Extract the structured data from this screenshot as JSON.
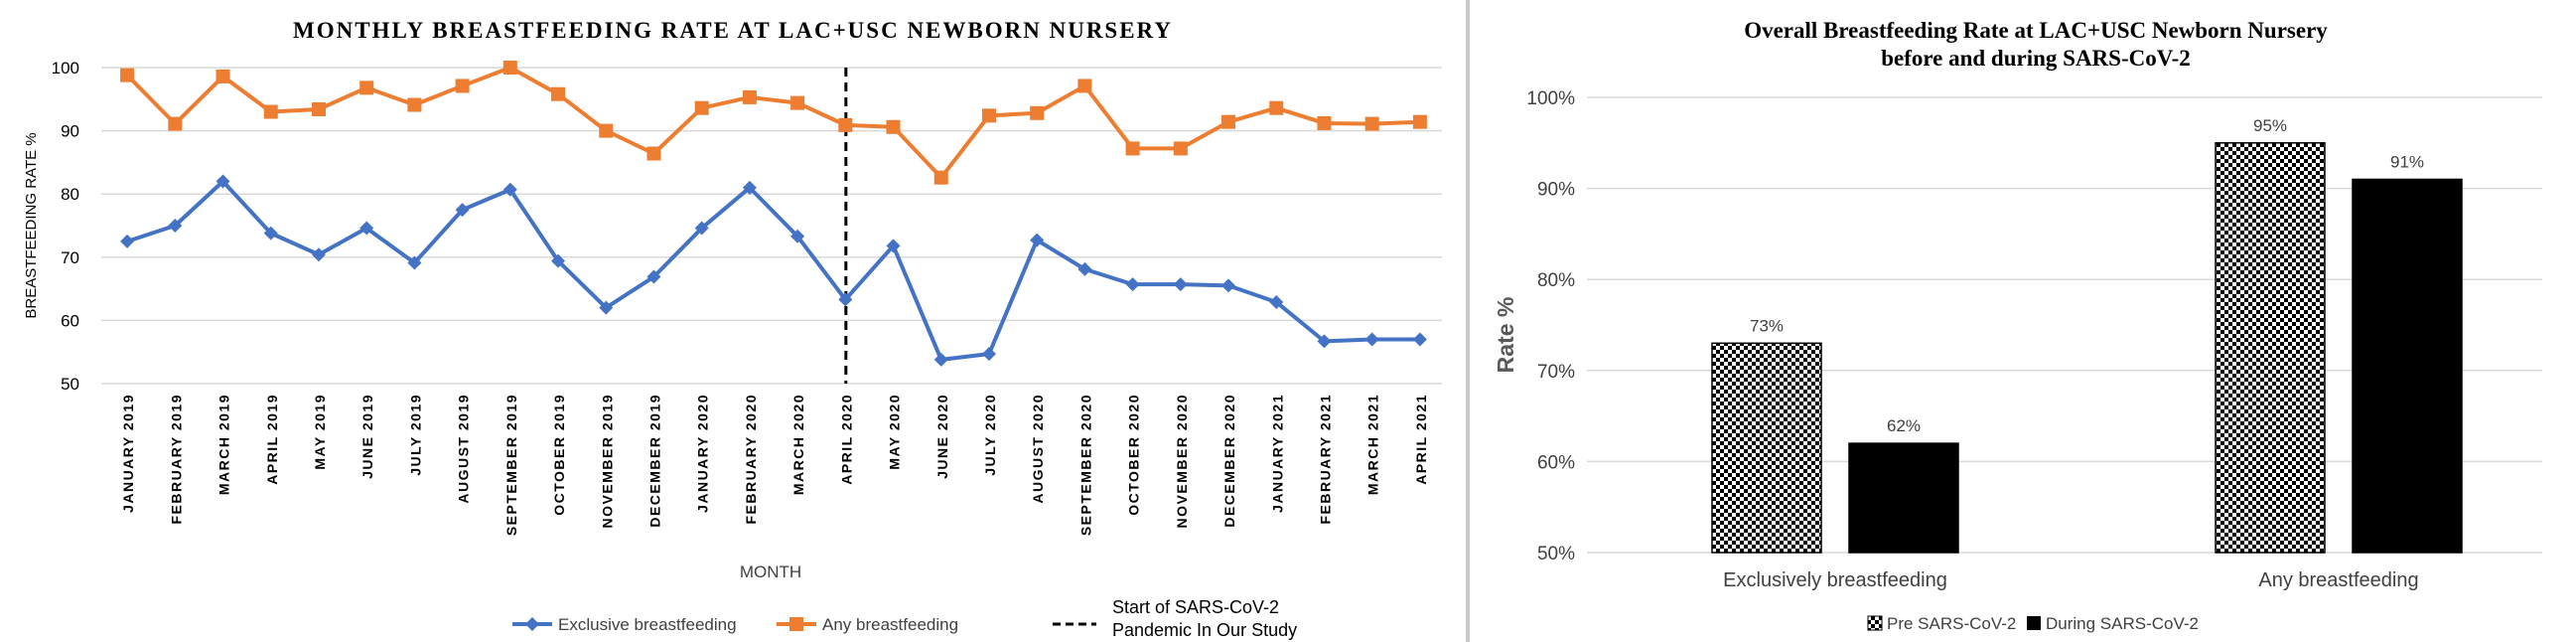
{
  "chart_data": [
    {
      "type": "line",
      "title": "MONTHLY BREASTFEEDING RATE AT LAC+USC NEWBORN NURSERY",
      "xlabel": "MONTH",
      "ylabel": "BREASTFEEDING RATE %",
      "ylim": [
        50,
        100
      ],
      "yticks": [
        "50",
        "60",
        "70",
        "80",
        "90",
        "100"
      ],
      "grid": true,
      "legend_position": "bottom",
      "categories": [
        "JANUARY 2019",
        "FEBRUARY 2019",
        "MARCH 2019",
        "APRIL 2019",
        "MAY 2019",
        "JUNE 2019",
        "JULY 2019",
        "AUGUST 2019",
        "SEPTEMBER 2019",
        "OCTOBER 2019",
        "NOVEMBER 2019",
        "DECEMBER 2019",
        "JANUARY 2020",
        "FEBRUARY 2020",
        "MARCH 2020",
        "APRIL 2020",
        "MAY 2020",
        "JUNE 2020",
        "JULY 2020",
        "AUGUST 2020",
        "SEPTEMBER 2020",
        "OCTOBER 2020",
        "NOVEMBER 2020",
        "DECEMBER 2020",
        "JANUARY 2021",
        "FEBRUARY 2021",
        "MARCH 2021",
        "APRIL 2021"
      ],
      "series": [
        {
          "name": "Exclusive breastfeeding",
          "color": "#4472c4",
          "marker": "diamond",
          "values": [
            72.5,
            75,
            82,
            73.8,
            70.4,
            74.6,
            69.1,
            77.5,
            80.7,
            69.4,
            62,
            66.9,
            74.6,
            81,
            73.3,
            63.3,
            71.8,
            53.8,
            54.7,
            72.7,
            68.1,
            65.7,
            65.7,
            65.5,
            62.9,
            56.7,
            57,
            57
          ]
        },
        {
          "name": "Any breastfeeding",
          "color": "#ed7d31",
          "marker": "square",
          "values": [
            98.8,
            91.1,
            98.6,
            93,
            93.4,
            96.8,
            94.1,
            97.1,
            100,
            95.8,
            90,
            86.4,
            93.6,
            95.3,
            94.4,
            90.9,
            90.6,
            82.6,
            92.4,
            92.8,
            97.1,
            87.2,
            87.2,
            91.4,
            93.6,
            91.2,
            91.1,
            91.4
          ]
        }
      ],
      "annotation": {
        "category": "APRIL 2020",
        "label_line1": "Start of SARS-CoV-2",
        "label_line2": "Pandemic In Our Study",
        "style": "dashed",
        "color": "#000000"
      }
    },
    {
      "type": "bar",
      "title_line1": "Overall Breastfeeding Rate at LAC+USC Newborn Nursery",
      "title_line2": "before and during SARS-CoV-2",
      "ylabel": "Rate %",
      "xlabel": "",
      "ylim": [
        50,
        100
      ],
      "yticks": [
        "50%",
        "60%",
        "70%",
        "80%",
        "90%",
        "100%"
      ],
      "grid": true,
      "legend_position": "bottom",
      "categories": [
        "Exclusively breastfeeding",
        "Any breastfeeding"
      ],
      "series": [
        {
          "name": "Pre SARS-CoV-2",
          "fill": "checkerboard",
          "values": [
            73,
            95
          ],
          "labels": [
            "73%",
            "95%"
          ]
        },
        {
          "name": "During SARS-CoV-2",
          "fill": "#000000",
          "values": [
            62,
            91
          ],
          "labels": [
            "62%",
            "91%"
          ]
        }
      ]
    }
  ]
}
